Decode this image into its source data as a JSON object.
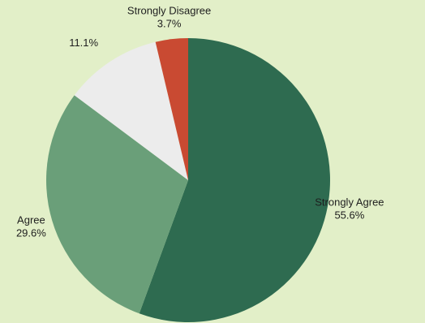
{
  "chart_data": {
    "type": "pie",
    "title": "",
    "start_angle_deg": 0,
    "direction": "clockwise",
    "slices": [
      {
        "label": "Strongly Agree",
        "value": 55.6,
        "value_label": "55.6%",
        "color": "#2e6b50"
      },
      {
        "label": "Agree",
        "value": 29.6,
        "value_label": "29.6%",
        "color": "#6a9f79"
      },
      {
        "label": "",
        "value": 11.1,
        "value_label": "11.1%",
        "color": "#ececec"
      },
      {
        "label": "Strongly Disagree",
        "value": 3.7,
        "value_label": "3.7%",
        "color": "#c94a32"
      }
    ]
  }
}
